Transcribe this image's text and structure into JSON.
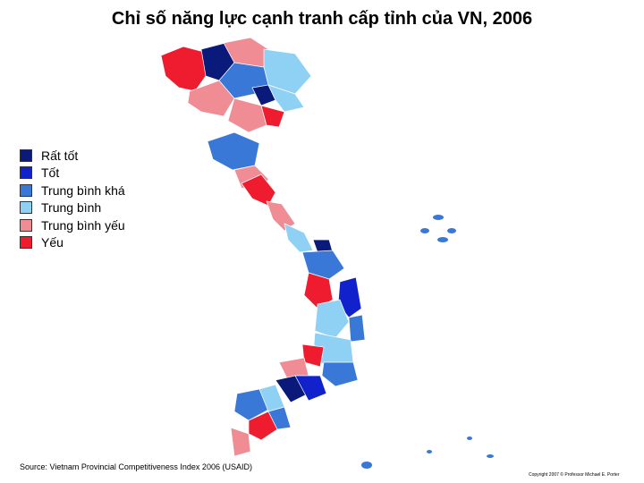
{
  "title": "Chỉ số năng lực cạnh tranh cấp tỉnh của VN, 2006",
  "legend": [
    {
      "label": "Rất tốt",
      "color": "#0a1a7a"
    },
    {
      "label": "Tốt",
      "color": "#1122cc"
    },
    {
      "label": "Trung bình khá",
      "color": "#3a78d8"
    },
    {
      "label": "Trung bình",
      "color": "#8fd0f5"
    },
    {
      "label": "Trung bình yếu",
      "color": "#f08c94"
    },
    {
      "label": "Yếu",
      "color": "#ee1c2e"
    }
  ],
  "source": "Source: Vietnam Provincial Competitiveness Index 2006 (USAID)",
  "copyright": "Copyright 2007 © Professor Michael E. Porter"
}
